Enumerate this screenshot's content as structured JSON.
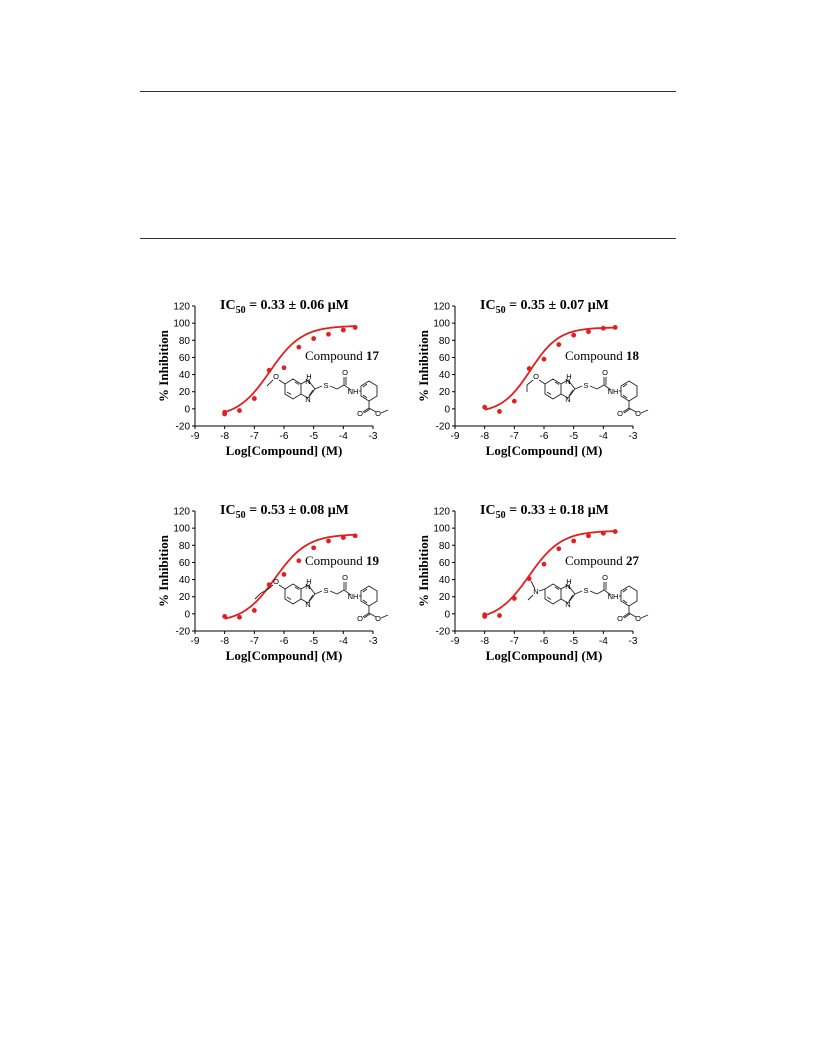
{
  "chart_data": [
    {
      "type": "scatter",
      "ic50_prefix": "IC",
      "ic50_sub": "50",
      "ic50_value": " = 0.33 ± 0.06 μM",
      "compound_prefix": "Compound ",
      "compound_number": "17",
      "substituent": "methoxy",
      "xlabel": "Log[Compound] (M)",
      "ylabel": "% Inhibition",
      "xlim": [
        -9,
        -3
      ],
      "ylim": [
        -20,
        120
      ],
      "x_ticks": [
        -9,
        -8,
        -7,
        -6,
        -5,
        -4,
        -3
      ],
      "y_ticks": [
        -20,
        0,
        20,
        40,
        60,
        80,
        100,
        120
      ],
      "series_color": "#e41e1e",
      "points": [
        [
          -8,
          -4
        ],
        [
          -8,
          -6
        ],
        [
          -7.5,
          -2
        ],
        [
          -7,
          12
        ],
        [
          -6.5,
          45
        ],
        [
          -6,
          48
        ],
        [
          -5.5,
          72
        ],
        [
          -5,
          82
        ],
        [
          -4.5,
          87
        ],
        [
          -4,
          92
        ],
        [
          -3.6,
          95
        ]
      ],
      "fit": {
        "bottom": -10,
        "top": 97,
        "logIC50": -6.48,
        "hill": 0.8,
        "x_start": -8,
        "x_end": -3.6
      }
    },
    {
      "type": "scatter",
      "ic50_prefix": "IC",
      "ic50_sub": "50",
      "ic50_value": " = 0.35 ± 0.07 μM",
      "compound_prefix": "Compound ",
      "compound_number": "18",
      "substituent": "ethoxy",
      "xlabel": "Log[Compound] (M)",
      "ylabel": "% Inhibition",
      "xlim": [
        -9,
        -3
      ],
      "ylim": [
        -20,
        120
      ],
      "x_ticks": [
        -9,
        -8,
        -7,
        -6,
        -5,
        -4,
        -3
      ],
      "y_ticks": [
        -20,
        0,
        20,
        40,
        60,
        80,
        100,
        120
      ],
      "series_color": "#e41e1e",
      "points": [
        [
          -8,
          2
        ],
        [
          -7.5,
          -3
        ],
        [
          -7,
          9
        ],
        [
          -6.5,
          47
        ],
        [
          -6,
          58
        ],
        [
          -5.5,
          75
        ],
        [
          -5,
          86
        ],
        [
          -4.5,
          90
        ],
        [
          -4,
          94
        ],
        [
          -3.6,
          95
        ]
      ],
      "fit": {
        "bottom": -5,
        "top": 95,
        "logIC50": -6.46,
        "hill": 0.9,
        "x_start": -8,
        "x_end": -3.6
      }
    },
    {
      "type": "scatter",
      "ic50_prefix": "IC",
      "ic50_sub": "50",
      "ic50_value": " = 0.53 ± 0.08 μM",
      "compound_prefix": "Compound ",
      "compound_number": "19",
      "substituent": "propoxy",
      "xlabel": "Log[Compound] (M)",
      "ylabel": "% Inhibition",
      "xlim": [
        -9,
        -3
      ],
      "ylim": [
        -20,
        120
      ],
      "x_ticks": [
        -9,
        -8,
        -7,
        -6,
        -5,
        -4,
        -3
      ],
      "y_ticks": [
        -20,
        0,
        20,
        40,
        60,
        80,
        100,
        120
      ],
      "series_color": "#e41e1e",
      "points": [
        [
          -8,
          -3
        ],
        [
          -7.5,
          -4
        ],
        [
          -7,
          4
        ],
        [
          -6.5,
          34
        ],
        [
          -6,
          46
        ],
        [
          -5.5,
          62
        ],
        [
          -5,
          77
        ],
        [
          -4.5,
          85
        ],
        [
          -4,
          89
        ],
        [
          -3.6,
          91
        ]
      ],
      "fit": {
        "bottom": -10,
        "top": 93,
        "logIC50": -6.3,
        "hill": 0.8,
        "x_start": -8,
        "x_end": -3.6
      }
    },
    {
      "type": "scatter",
      "ic50_prefix": "IC",
      "ic50_sub": "50",
      "ic50_value": " = 0.33 ± 0.18 μM",
      "compound_prefix": "Compound ",
      "compound_number": "27",
      "substituent": "dimethylamino",
      "xlabel": "Log[Compound] (M)",
      "ylabel": "% Inhibition",
      "xlim": [
        -9,
        -3
      ],
      "ylim": [
        -20,
        120
      ],
      "x_ticks": [
        -9,
        -8,
        -7,
        -6,
        -5,
        -4,
        -3
      ],
      "y_ticks": [
        -20,
        0,
        20,
        40,
        60,
        80,
        100,
        120
      ],
      "series_color": "#e41e1e",
      "points": [
        [
          -8,
          -1
        ],
        [
          -8,
          -3
        ],
        [
          -7.5,
          -2
        ],
        [
          -7,
          18
        ],
        [
          -6.5,
          41
        ],
        [
          -6,
          58
        ],
        [
          -5.5,
          76
        ],
        [
          -5,
          85
        ],
        [
          -4.5,
          91
        ],
        [
          -4,
          94
        ],
        [
          -3.6,
          96
        ]
      ],
      "fit": {
        "bottom": -8,
        "top": 97,
        "logIC50": -6.5,
        "hill": 0.8,
        "x_start": -8,
        "x_end": -3.6
      }
    }
  ]
}
